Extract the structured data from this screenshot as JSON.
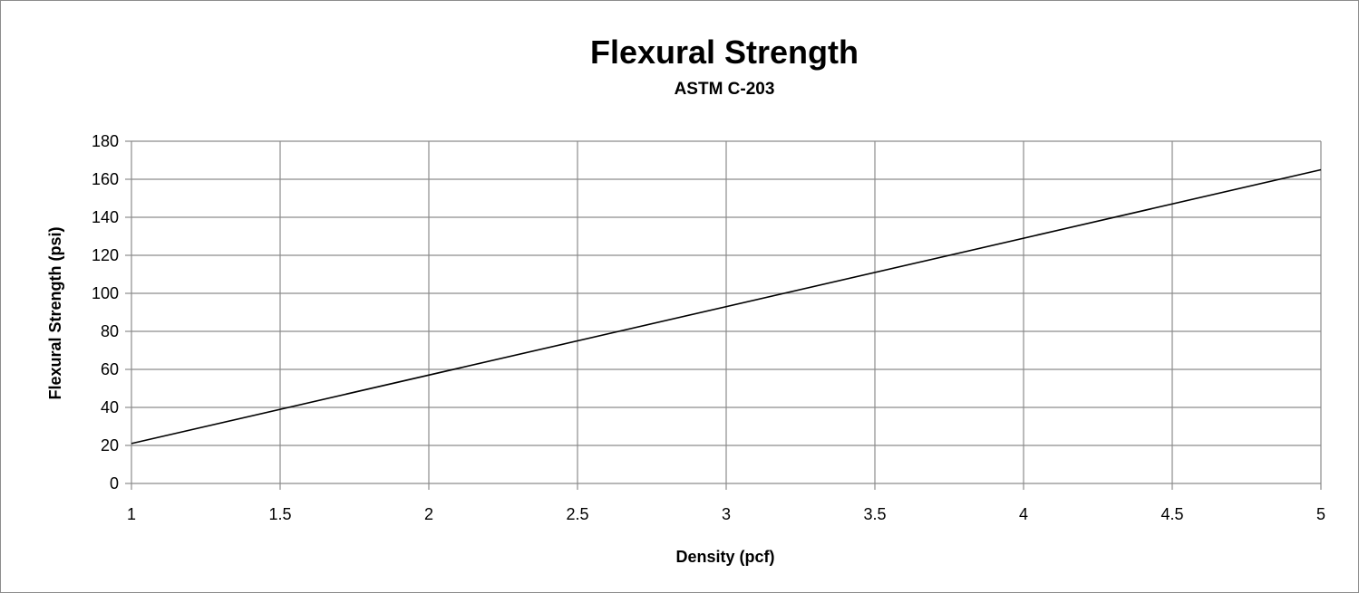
{
  "chart_data": {
    "type": "line",
    "title": "Flexural Strength",
    "subtitle": "ASTM C-203",
    "xlabel": "Density (pcf)",
    "ylabel": "Flexural Strength (psi)",
    "xlim": [
      1,
      5
    ],
    "ylim": [
      0,
      180
    ],
    "x_ticks": [
      "1",
      "1.5",
      "2",
      "2.5",
      "3",
      "3.5",
      "4",
      "4.5",
      "5"
    ],
    "y_ticks": [
      "0",
      "20",
      "40",
      "60",
      "80",
      "100",
      "120",
      "140",
      "160",
      "180"
    ],
    "grid": true,
    "legend": "none",
    "series": [
      {
        "x": [
          1,
          5
        ],
        "y": [
          21,
          165
        ]
      }
    ],
    "colors": {
      "series": "#000000",
      "grid": "#8c8c8c"
    }
  }
}
